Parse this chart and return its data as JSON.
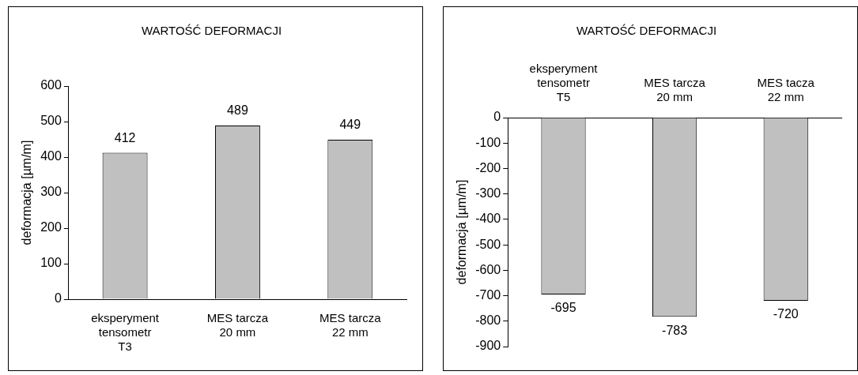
{
  "chart_data": [
    {
      "type": "bar",
      "title": "WARTOŚĆ DEFORMACJI",
      "ylabel": "deformacja [µm/m]",
      "categories": [
        "eksperyment\ntensometr\nT3",
        "MES tarcza\n20 mm",
        "MES tarcza\n22 mm"
      ],
      "values": [
        412,
        489,
        449
      ],
      "color": "#c0c0c0",
      "ylim": [
        0,
        600
      ],
      "yticks": [
        0,
        100,
        200,
        300,
        400,
        500,
        600
      ],
      "data_labels": true
    },
    {
      "type": "bar",
      "title": "WARTOŚĆ DEFORMACJI",
      "ylabel": "deformacja [µm/m]",
      "categories": [
        "eksperyment\ntensometr\nT5",
        "MES tarcza\n20 mm",
        "MES tacza\n22 mm"
      ],
      "values": [
        -695,
        -783,
        -720
      ],
      "color": "#c0c0c0",
      "ylim": [
        -900,
        0
      ],
      "yticks": [
        0,
        -100,
        -200,
        -300,
        -400,
        -500,
        -600,
        -700,
        -800,
        -900
      ],
      "data_labels": true
    }
  ]
}
